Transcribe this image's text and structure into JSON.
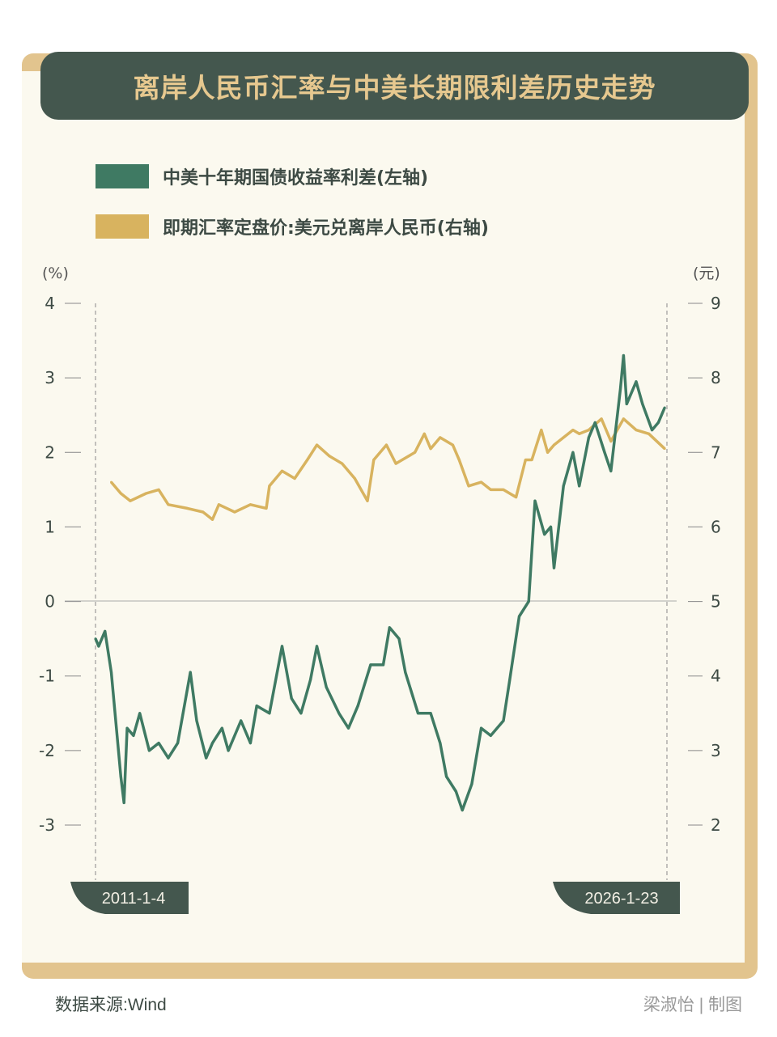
{
  "title": "离岸人民币汇率与中美长期限利差历史走势",
  "footer": {
    "source": "数据来源:Wind",
    "credit": "梁淑怡 | 制图"
  },
  "chart_data": {
    "type": "line",
    "title": "离岸人民币汇率与中美长期限利差历史走势",
    "legend_position": "top-left",
    "colors": {
      "spread": "#3f7a63",
      "fx": "#d8b35f",
      "title_bar": "#44574e",
      "title_text": "#e6c88f"
    },
    "left_axis": {
      "unit": "(%)",
      "range": [
        -3,
        4
      ],
      "ticks": [
        "4",
        "3",
        "2",
        "1",
        "0",
        "-1",
        "-2",
        "-3"
      ]
    },
    "right_axis": {
      "unit": "(元)",
      "range": [
        2,
        9
      ],
      "ticks": [
        "9",
        "8",
        "7",
        "6",
        "5",
        "4",
        "3",
        "2"
      ]
    },
    "x_axis": {
      "start_label": "2011-1-4",
      "end_label": "2026-1-23"
    },
    "series": [
      {
        "name": "中美十年期国债收益率利差(左轴)",
        "axis": "left",
        "points": [
          [
            "2011-01",
            -0.5
          ],
          [
            "2011-02",
            -0.6
          ],
          [
            "2011-04",
            -0.4
          ],
          [
            "2011-06",
            -0.95
          ],
          [
            "2011-09",
            -2.35
          ],
          [
            "2011-10",
            -2.7
          ],
          [
            "2011-11",
            -1.7
          ],
          [
            "2012-01",
            -1.8
          ],
          [
            "2012-03",
            -1.5
          ],
          [
            "2012-06",
            -2.0
          ],
          [
            "2012-09",
            -1.9
          ],
          [
            "2012-12",
            -2.1
          ],
          [
            "2013-03",
            -1.9
          ],
          [
            "2013-07",
            -0.95
          ],
          [
            "2013-09",
            -1.6
          ],
          [
            "2013-12",
            -2.1
          ],
          [
            "2014-02",
            -1.9
          ],
          [
            "2014-05",
            -1.7
          ],
          [
            "2014-07",
            -2.0
          ],
          [
            "2014-11",
            -1.6
          ],
          [
            "2015-02",
            -1.9
          ],
          [
            "2015-04",
            -1.4
          ],
          [
            "2015-08",
            -1.5
          ],
          [
            "2015-12",
            -0.6
          ],
          [
            "2016-03",
            -1.3
          ],
          [
            "2016-06",
            -1.5
          ],
          [
            "2016-09",
            -1.05
          ],
          [
            "2016-11",
            -0.6
          ],
          [
            "2017-02",
            -1.15
          ],
          [
            "2017-06",
            -1.5
          ],
          [
            "2017-09",
            -1.7
          ],
          [
            "2017-12",
            -1.4
          ],
          [
            "2018-04",
            -0.85
          ],
          [
            "2018-08",
            -0.85
          ],
          [
            "2018-10",
            -0.35
          ],
          [
            "2019-01",
            -0.5
          ],
          [
            "2019-03",
            -0.95
          ],
          [
            "2019-07",
            -1.5
          ],
          [
            "2019-11",
            -1.5
          ],
          [
            "2020-02",
            -1.9
          ],
          [
            "2020-04",
            -2.35
          ],
          [
            "2020-07",
            -2.55
          ],
          [
            "2020-09",
            -2.8
          ],
          [
            "2020-12",
            -2.45
          ],
          [
            "2021-03",
            -1.7
          ],
          [
            "2021-06",
            -1.8
          ],
          [
            "2021-10",
            -1.6
          ],
          [
            "2021-12",
            -1.05
          ],
          [
            "2022-03",
            -0.2
          ],
          [
            "2022-06",
            0.0
          ],
          [
            "2022-08",
            1.35
          ],
          [
            "2022-11",
            0.9
          ],
          [
            "2023-01",
            1.0
          ],
          [
            "2023-02",
            0.45
          ],
          [
            "2023-05",
            1.55
          ],
          [
            "2023-08",
            2.0
          ],
          [
            "2023-10",
            1.55
          ],
          [
            "2024-01",
            2.2
          ],
          [
            "2024-03",
            2.4
          ],
          [
            "2024-06",
            2.0
          ],
          [
            "2024-08",
            1.75
          ],
          [
            "2024-11",
            2.85
          ],
          [
            "2024-12",
            3.3
          ],
          [
            "2025-01",
            2.65
          ],
          [
            "2025-04",
            2.95
          ],
          [
            "2025-06",
            2.65
          ],
          [
            "2025-09",
            2.3
          ],
          [
            "2025-11",
            2.4
          ],
          [
            "2026-01",
            2.6
          ]
        ]
      },
      {
        "name": "即期汇率定盘价:美元兑离岸人民币(右轴)",
        "axis": "right",
        "points": [
          [
            "2011-06",
            6.6
          ],
          [
            "2011-09",
            6.45
          ],
          [
            "2011-12",
            6.35
          ],
          [
            "2012-05",
            6.45
          ],
          [
            "2012-09",
            6.5
          ],
          [
            "2012-12",
            6.3
          ],
          [
            "2013-06",
            6.25
          ],
          [
            "2013-11",
            6.2
          ],
          [
            "2014-02",
            6.1
          ],
          [
            "2014-04",
            6.3
          ],
          [
            "2014-09",
            6.2
          ],
          [
            "2015-02",
            6.3
          ],
          [
            "2015-07",
            6.25
          ],
          [
            "2015-08",
            6.55
          ],
          [
            "2015-12",
            6.75
          ],
          [
            "2016-04",
            6.65
          ],
          [
            "2016-08",
            6.9
          ],
          [
            "2016-11",
            7.1
          ],
          [
            "2017-03",
            6.95
          ],
          [
            "2017-07",
            6.85
          ],
          [
            "2017-11",
            6.65
          ],
          [
            "2018-03",
            6.35
          ],
          [
            "2018-05",
            6.9
          ],
          [
            "2018-09",
            7.1
          ],
          [
            "2018-12",
            6.85
          ],
          [
            "2019-02",
            6.9
          ],
          [
            "2019-06",
            7.0
          ],
          [
            "2019-09",
            7.25
          ],
          [
            "2019-11",
            7.05
          ],
          [
            "2020-02",
            7.2
          ],
          [
            "2020-06",
            7.1
          ],
          [
            "2020-08",
            6.9
          ],
          [
            "2020-11",
            6.55
          ],
          [
            "2021-03",
            6.6
          ],
          [
            "2021-06",
            6.5
          ],
          [
            "2021-10",
            6.5
          ],
          [
            "2022-02",
            6.4
          ],
          [
            "2022-05",
            6.9
          ],
          [
            "2022-07",
            6.9
          ],
          [
            "2022-10",
            7.3
          ],
          [
            "2022-12",
            7.0
          ],
          [
            "2023-02",
            7.1
          ],
          [
            "2023-05",
            7.2
          ],
          [
            "2023-08",
            7.3
          ],
          [
            "2023-10",
            7.25
          ],
          [
            "2024-01",
            7.3
          ],
          [
            "2024-05",
            7.45
          ],
          [
            "2024-08",
            7.15
          ],
          [
            "2024-12",
            7.45
          ],
          [
            "2025-04",
            7.3
          ],
          [
            "2025-08",
            7.25
          ],
          [
            "2026-01",
            7.05
          ]
        ]
      }
    ]
  }
}
